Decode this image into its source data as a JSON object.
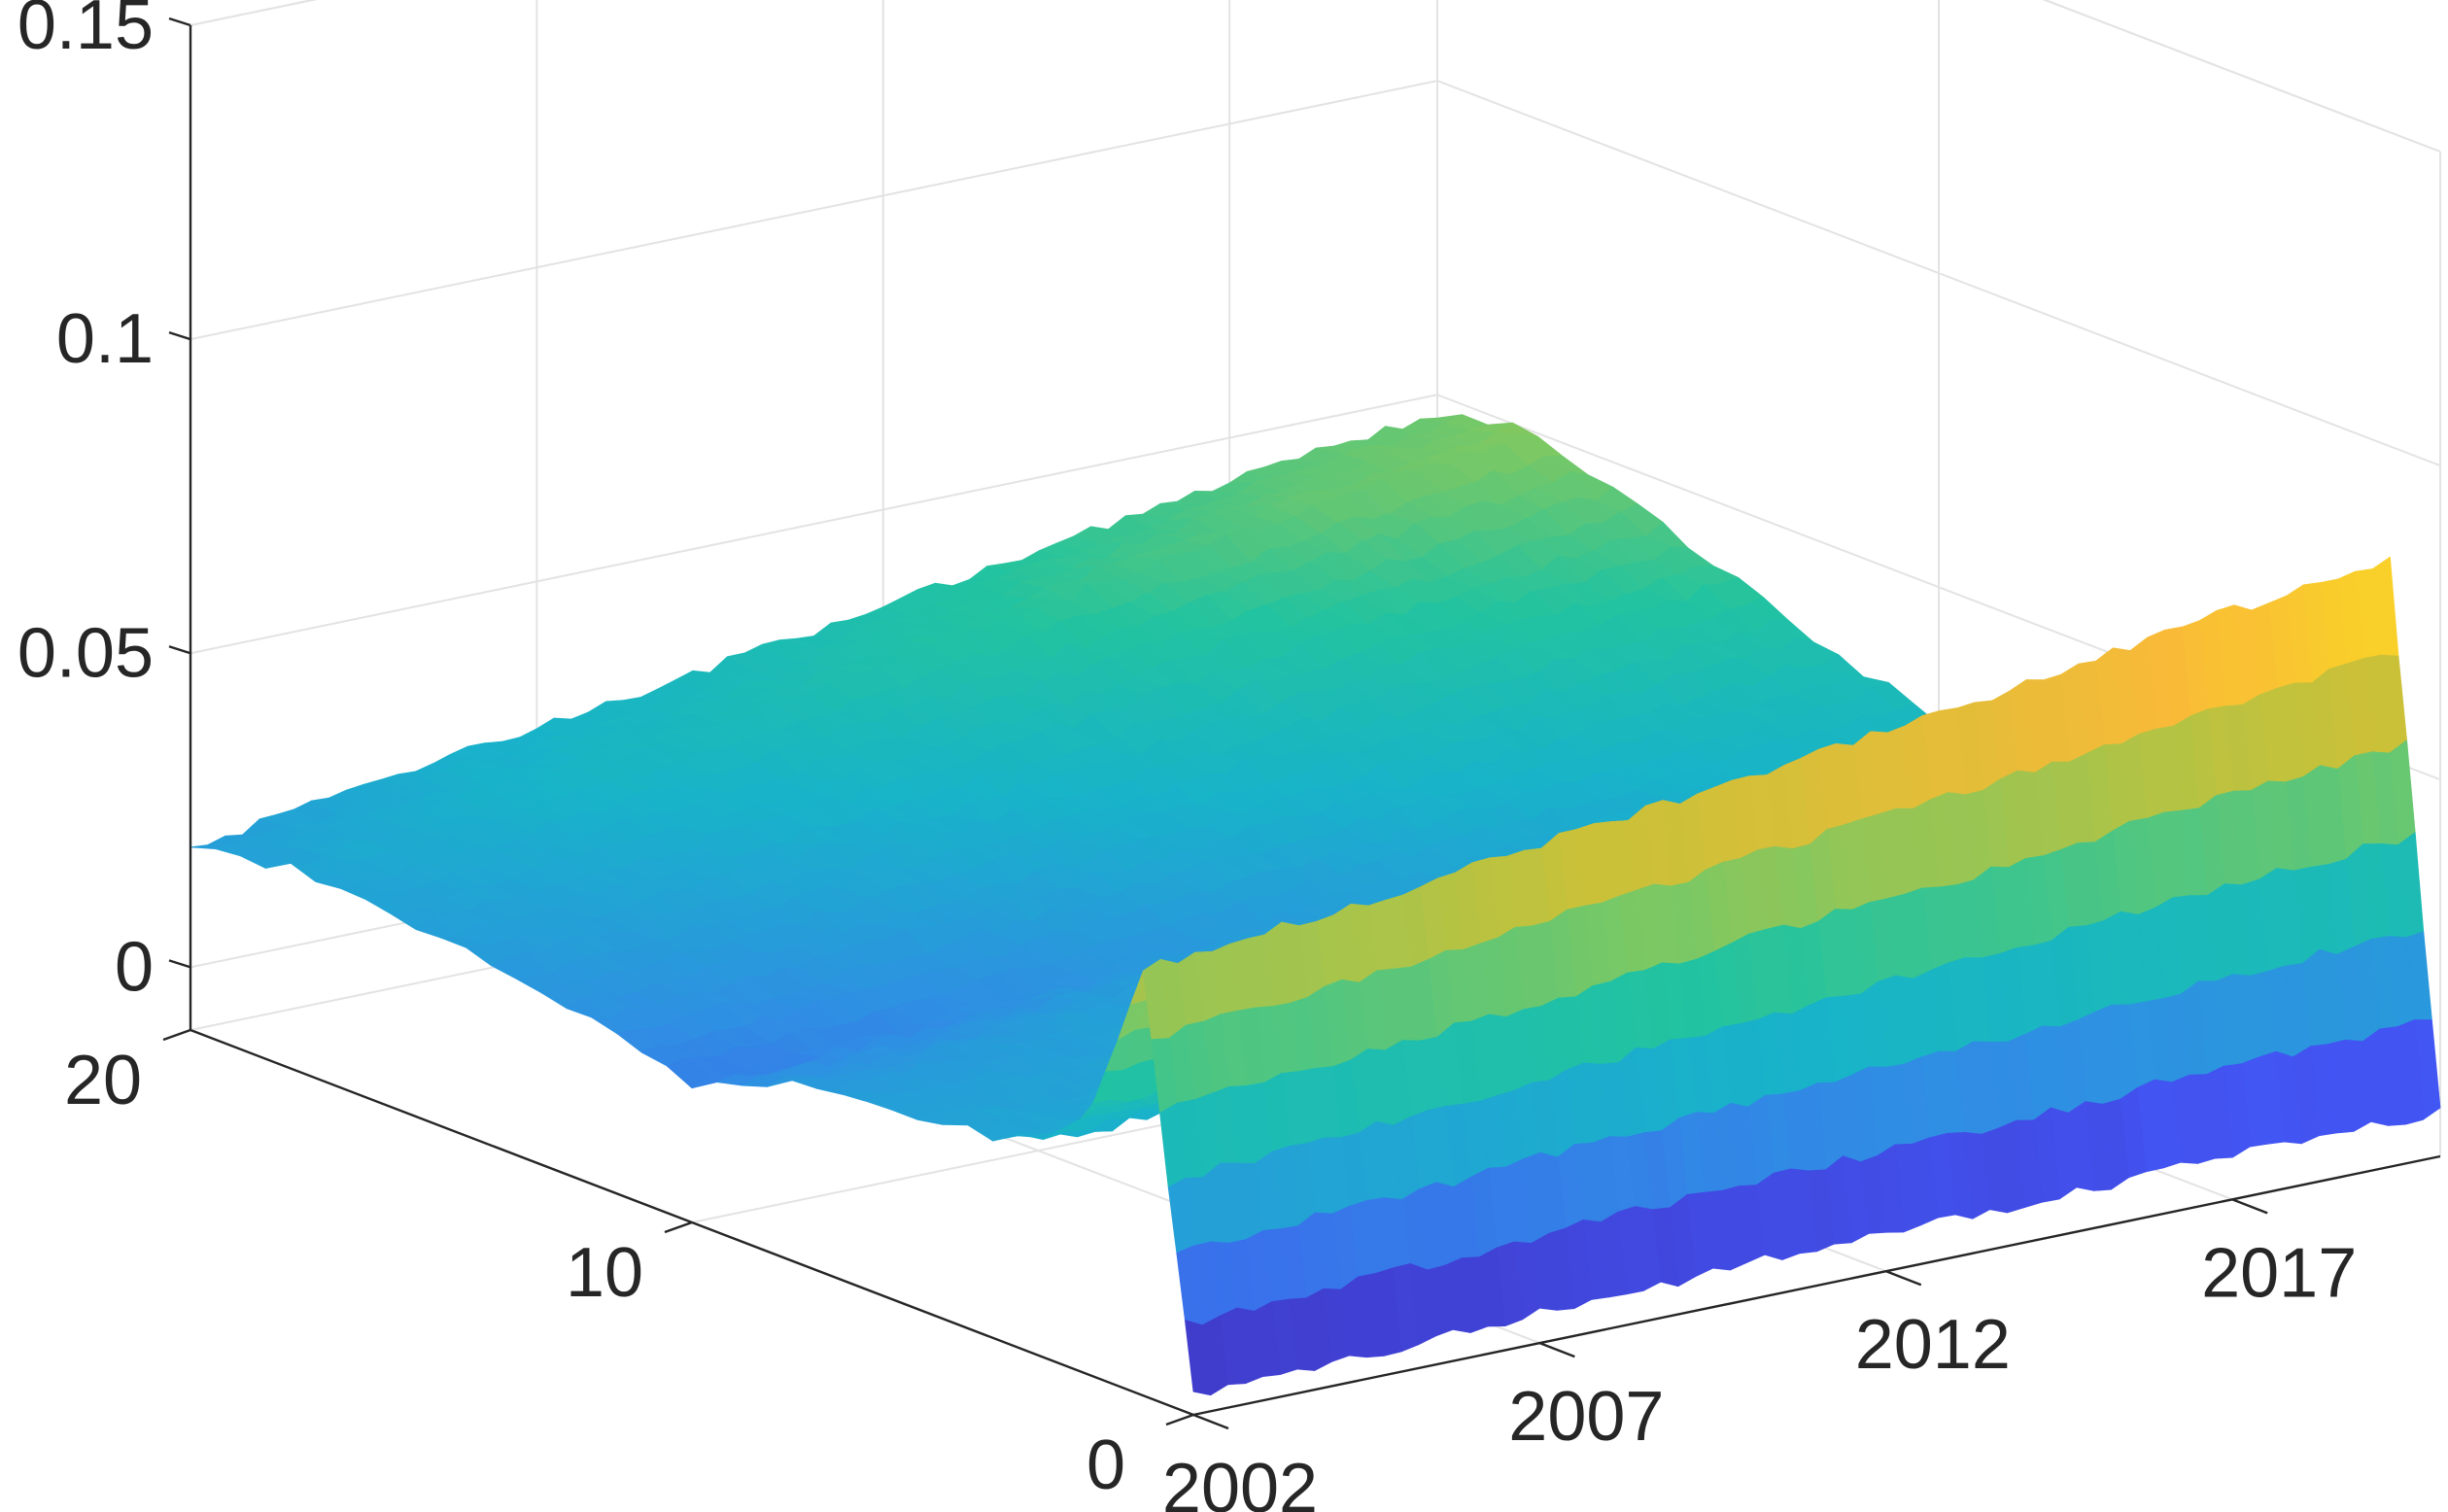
{
  "chart_data": {
    "type": "surface",
    "title": "",
    "xlabel": "",
    "ylabel": "",
    "zlabel": "",
    "x_axis": {
      "ticks": [
        2002,
        2007,
        2012,
        2017
      ],
      "tick_labels": [
        "2002",
        "2007",
        "2012",
        "2017"
      ],
      "lim": [
        2002,
        2020
      ]
    },
    "y_axis": {
      "ticks": [
        0,
        10,
        20
      ],
      "tick_labels": [
        "0",
        "10",
        "20"
      ],
      "lim": [
        0,
        20
      ]
    },
    "z_axis": {
      "ticks": [
        0,
        0.05,
        0.1,
        0.15
      ],
      "tick_labels": [
        "0",
        "0.05",
        "0.1",
        "0.15"
      ],
      "lim": [
        -0.01,
        0.15
      ]
    },
    "grid": true,
    "colormap": [
      "#3e26a8",
      "#4255f3",
      "#2f8fe3",
      "#18b3c9",
      "#22c3a0",
      "#79c865",
      "#c8c139",
      "#f9ba38",
      "#f9fb0e"
    ],
    "surface": {
      "years": [
        2002,
        2005,
        2008,
        2011,
        2014,
        2017,
        2020
      ],
      "maturities": [
        0,
        1,
        2,
        3,
        4,
        6,
        8,
        10,
        12,
        14,
        16,
        18,
        20
      ],
      "z": [
        [
          -0.007,
          0.058,
          0.033,
          0.024,
          0.022,
          0.02,
          0.018,
          0.012,
          0.016,
          0.019,
          0.021,
          0.022,
          0.019
        ],
        [
          -0.006,
          0.061,
          0.034,
          0.025,
          0.023,
          0.021,
          0.019,
          0.014,
          0.018,
          0.021,
          0.024,
          0.026,
          0.024
        ],
        [
          -0.005,
          0.065,
          0.036,
          0.026,
          0.024,
          0.022,
          0.021,
          0.017,
          0.021,
          0.024,
          0.027,
          0.03,
          0.028
        ],
        [
          -0.004,
          0.069,
          0.037,
          0.027,
          0.025,
          0.023,
          0.023,
          0.02,
          0.024,
          0.027,
          0.031,
          0.035,
          0.033
        ],
        [
          -0.004,
          0.073,
          0.038,
          0.028,
          0.026,
          0.024,
          0.025,
          0.023,
          0.027,
          0.031,
          0.036,
          0.041,
          0.038
        ],
        [
          -0.003,
          0.078,
          0.039,
          0.029,
          0.027,
          0.025,
          0.027,
          0.026,
          0.03,
          0.035,
          0.04,
          0.046,
          0.043
        ],
        [
          -0.003,
          0.082,
          0.04,
          0.03,
          0.028,
          0.026,
          0.029,
          0.029,
          0.033,
          0.039,
          0.044,
          0.05,
          0.047
        ]
      ]
    }
  }
}
